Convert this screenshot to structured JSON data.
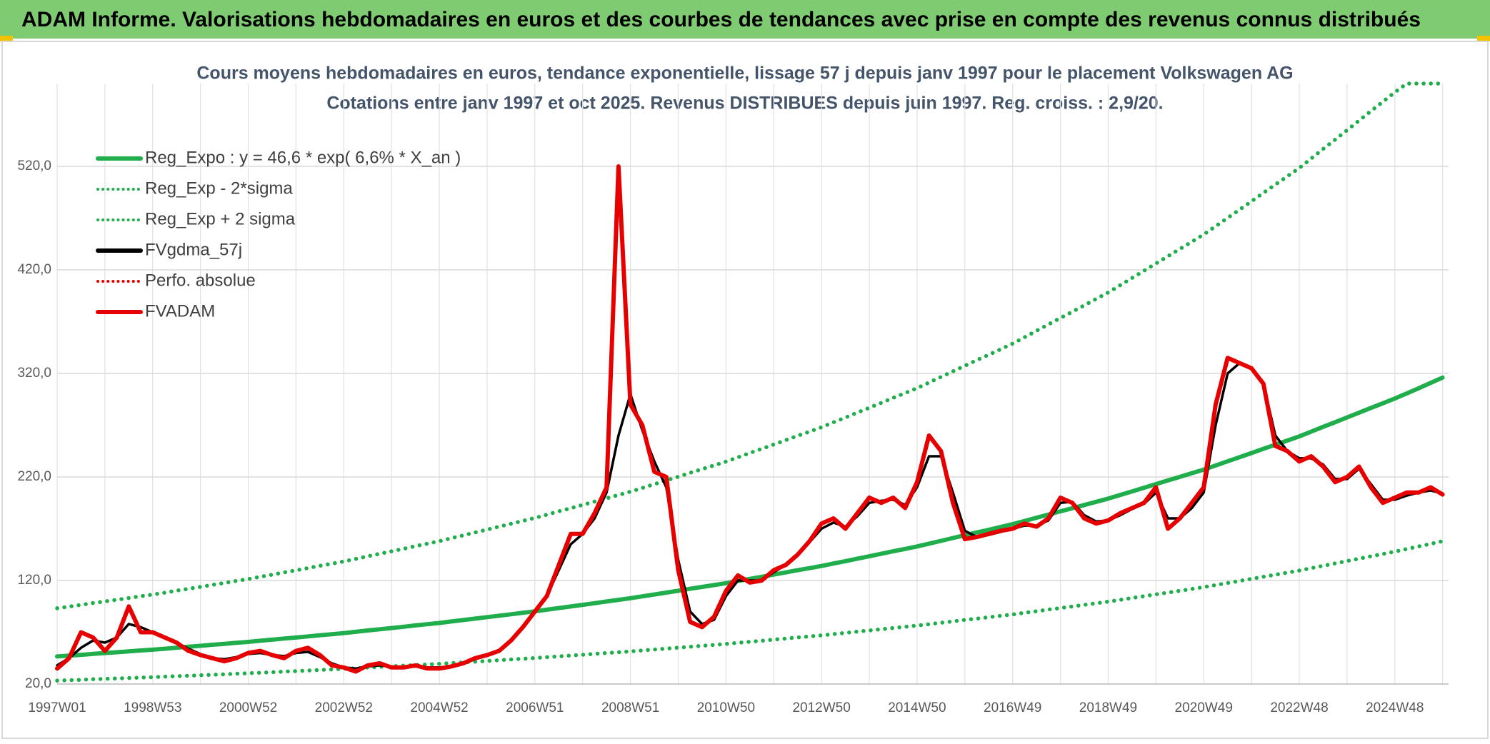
{
  "chart_data": {
    "type": "line",
    "title": "ADAM Informe. Valorisations hebdomadaires en euros et des courbes de tendances avec prise en compte des revenus connus distribués",
    "subtitle": [
      "Cours moyens hebdomadaires en euros, tendance exponentielle, lissage 57 j depuis janv 1997 pour le placement Volkswagen AG",
      "Cotations entre janv 1997 et oct 2025. Revenus DISTRIBUES depuis juin 1997. Reg. croiss. : 2,9/20."
    ],
    "categories": [
      "1997W01",
      null,
      null,
      null,
      null,
      null,
      null,
      null,
      "1998W53",
      null,
      null,
      null,
      null,
      null,
      null,
      null,
      "2000W52",
      null,
      null,
      null,
      null,
      null,
      null,
      null,
      "2002W52",
      null,
      null,
      null,
      null,
      null,
      null,
      null,
      "2004W52",
      null,
      null,
      null,
      null,
      null,
      null,
      null,
      "2006W51",
      null,
      null,
      null,
      null,
      null,
      null,
      null,
      "2008W51",
      null,
      null,
      null,
      null,
      null,
      null,
      null,
      "2010W50",
      null,
      null,
      null,
      null,
      null,
      null,
      null,
      "2012W50",
      null,
      null,
      null,
      null,
      null,
      null,
      null,
      "2014W50",
      null,
      null,
      null,
      null,
      null,
      null,
      null,
      "2016W49",
      null,
      null,
      null,
      null,
      null,
      null,
      null,
      "2018W49",
      null,
      null,
      null,
      null,
      null,
      null,
      null,
      "2020W49",
      null,
      null,
      null,
      null,
      null,
      null,
      null,
      "2022W48",
      null,
      null,
      null,
      null,
      null,
      null,
      null,
      "2024W48",
      null,
      null,
      null,
      null
    ],
    "ylim": [
      20,
      600
    ],
    "yticks": [
      {
        "value": 20,
        "label": "20,0"
      },
      {
        "value": 120,
        "label": "120,0"
      },
      {
        "value": 220,
        "label": "220,0"
      },
      {
        "value": 320,
        "label": "320,0"
      },
      {
        "value": 420,
        "label": "420,0"
      },
      {
        "value": 520,
        "label": "520,0"
      }
    ],
    "grid": true,
    "legend": "upper left",
    "series": [
      {
        "name": "Reg_Expo : y = 46,6 * exp( 6,6% *  X_an )",
        "color": "#1fae4b",
        "line_style": "solid",
        "values": [
          46.6,
          47.4,
          48.2,
          49.1,
          49.9,
          50.7,
          51.5,
          52.4,
          53.2,
          54.1,
          55.1,
          56.0,
          56.9,
          57.9,
          58.8,
          59.8,
          60.7,
          61.8,
          62.8,
          63.9,
          64.9,
          66.0,
          67.1,
          68.1,
          69.2,
          70.4,
          71.7,
          72.9,
          74.1,
          75.3,
          76.6,
          77.8,
          79.0,
          80.4,
          81.8,
          83.2,
          84.6,
          86.0,
          87.4,
          88.8,
          90.2,
          91.8,
          93.4,
          94.9,
          96.5,
          98.1,
          99.7,
          101.3,
          102.9,
          104.7,
          106.5,
          108.3,
          110.1,
          112.0,
          113.8,
          115.6,
          117.4,
          119.5,
          121.6,
          123.6,
          125.7,
          127.8,
          129.9,
          131.9,
          134.0,
          136.4,
          138.7,
          141.1,
          143.4,
          145.8,
          148.2,
          150.5,
          152.9,
          155.6,
          158.3,
          161.0,
          163.7,
          166.4,
          169.0,
          171.7,
          174.4,
          177.5,
          180.6,
          183.7,
          186.8,
          189.8,
          192.9,
          196.0,
          199.1,
          202.6,
          206.1,
          209.6,
          213.1,
          216.6,
          220.1,
          223.6,
          227.1,
          231.1,
          235.1,
          239.1,
          243.1,
          247.2,
          251.2,
          255.2,
          259.2,
          263.8,
          268.4,
          272.9,
          277.5,
          282.1,
          286.7,
          291.2,
          295.8,
          300.7,
          305.7,
          310.8,
          316.0
        ]
      },
      {
        "name": "Reg_Exp - 2*sigma",
        "color": "#1fae4b",
        "line_style": "dotted",
        "values": [
          23.3,
          23.7,
          24.1,
          24.6,
          25,
          25.4,
          25.8,
          26.2,
          26.6,
          27.1,
          27.6,
          28,
          28.5,
          29,
          29.4,
          29.9,
          30.4,
          30.9,
          31.4,
          32,
          32.5,
          33,
          33.6,
          34.1,
          34.6,
          35.2,
          35.9,
          36.5,
          37.1,
          37.7,
          38.3,
          38.9,
          39.5,
          40.2,
          40.9,
          41.6,
          42.3,
          43,
          43.7,
          44.4,
          45.1,
          45.9,
          46.7,
          47.5,
          48.3,
          49.1,
          49.9,
          50.7,
          51.5,
          52.4,
          53.3,
          54.2,
          55.1,
          56,
          56.9,
          57.8,
          58.7,
          59.8,
          60.8,
          61.8,
          62.9,
          63.9,
          65,
          66,
          67,
          68.2,
          69.4,
          70.6,
          71.7,
          72.9,
          74.1,
          75.3,
          76.5,
          77.8,
          79.2,
          80.5,
          81.9,
          83.2,
          84.5,
          85.9,
          87.2,
          88.8,
          90.3,
          91.9,
          93.4,
          94.9,
          96.5,
          98,
          99.6,
          101.3,
          103.1,
          104.8,
          106.6,
          108.3,
          110.1,
          111.8,
          113.6,
          115.6,
          117.6,
          119.6,
          121.6,
          123.6,
          125.6,
          127.6,
          129.6,
          131.9,
          134.2,
          136.5,
          138.8,
          141.1,
          143.4,
          145.6,
          147.9,
          150.4,
          152.9,
          155.4,
          158
        ]
      },
      {
        "name": "Reg_Exp + 2 sigma",
        "color": "#1fae4b",
        "line_style": "dotted",
        "values": [
          93.2,
          94.8,
          96.4,
          98.2,
          99.8,
          101.4,
          103,
          104.8,
          106.4,
          108.2,
          110.2,
          112,
          113.8,
          115.8,
          117.6,
          119.6,
          121.4,
          123.6,
          125.6,
          127.8,
          129.8,
          132,
          134.2,
          136.2,
          138.4,
          140.8,
          143.4,
          145.8,
          148.2,
          150.6,
          153.2,
          155.6,
          158,
          160.8,
          163.6,
          166.4,
          169.2,
          172,
          174.8,
          177.6,
          180.4,
          183.6,
          186.8,
          189.8,
          193,
          196.2,
          199.4,
          202.6,
          205.8,
          209.4,
          213,
          216.6,
          220.2,
          224,
          227.6,
          231.2,
          234.8,
          239,
          243.2,
          247.2,
          251.4,
          255.6,
          259.8,
          263.8,
          268,
          272.8,
          277.4,
          282.2,
          286.8,
          291.6,
          296.4,
          301,
          305.8,
          311.2,
          316.6,
          322,
          327.4,
          332.8,
          338,
          343.4,
          348.8,
          355,
          361.2,
          367.4,
          373.6,
          379.6,
          385.8,
          392,
          398.2,
          405.2,
          412.2,
          419.2,
          426.2,
          433.2,
          440.2,
          447.2,
          454.2,
          462.2,
          470.2,
          478.2,
          486.2,
          494.4,
          502.4,
          510.4,
          518.4,
          527.6,
          536.8,
          545.8,
          555,
          564.2,
          573.4,
          582.4,
          591.6,
          600,
          600,
          600,
          600
        ]
      },
      {
        "name": "FVgdma_57j",
        "color": "#000000",
        "line_style": "solid",
        "values": [
          38,
          45,
          55,
          62,
          60,
          65,
          78,
          75,
          70,
          65,
          60,
          54,
          49,
          45,
          44,
          46,
          49,
          50,
          48,
          47,
          50,
          51,
          46,
          40,
          36,
          35,
          37,
          38,
          37,
          36,
          37,
          36,
          36,
          37,
          40,
          44,
          48,
          53,
          62,
          75,
          90,
          105,
          130,
          155,
          165,
          180,
          205,
          260,
          300,
          265,
          235,
          210,
          140,
          90,
          78,
          82,
          105,
          120,
          120,
          120,
          128,
          135,
          145,
          157,
          170,
          176,
          172,
          182,
          195,
          197,
          198,
          193,
          210,
          240,
          240,
          205,
          168,
          162,
          164,
          167,
          170,
          173,
          173,
          178,
          195,
          196,
          183,
          177,
          178,
          183,
          189,
          194,
          205,
          180,
          180,
          190,
          205,
          270,
          320,
          330,
          325,
          310,
          260,
          245,
          238,
          238,
          232,
          218,
          218,
          228,
          213,
          198,
          198,
          202,
          205,
          207,
          204
        ]
      },
      {
        "name": "Perfo. absolue",
        "color": "#e60000",
        "line_style": "dotted",
        "values": [
          null,
          null,
          null,
          null,
          null,
          null,
          null,
          null,
          null,
          null,
          null,
          null,
          null,
          null,
          null,
          null,
          null,
          null,
          null,
          null,
          null,
          null,
          null,
          null,
          null,
          null,
          null,
          null,
          null,
          null,
          null,
          null,
          null,
          null,
          null,
          null,
          null,
          null,
          null,
          null,
          null,
          null,
          null,
          null,
          null,
          null,
          null,
          null,
          null,
          null,
          null,
          null,
          null,
          null,
          null,
          null,
          null,
          null,
          null,
          null,
          null,
          null,
          null,
          null,
          null,
          null,
          null,
          null,
          null,
          null,
          null,
          null,
          null,
          null,
          null,
          null,
          null,
          null,
          null,
          null,
          null,
          null,
          null,
          null,
          null,
          null,
          null,
          null,
          null,
          null,
          null,
          null,
          null,
          null,
          null,
          null,
          null,
          null,
          null,
          null,
          null,
          null,
          null,
          null,
          null,
          null,
          null,
          null,
          null,
          null,
          null,
          null,
          null,
          null,
          null,
          null,
          null
        ]
      },
      {
        "name": "FVADAM",
        "color": "#e60000",
        "line_style": "solid",
        "values": [
          35,
          45,
          70,
          65,
          52,
          65,
          95,
          70,
          70,
          65,
          60,
          52,
          48,
          45,
          42,
          45,
          50,
          52,
          48,
          45,
          52,
          55,
          48,
          38,
          36,
          32,
          38,
          40,
          36,
          36,
          38,
          35,
          35,
          37,
          40,
          45,
          48,
          52,
          62,
          75,
          90,
          105,
          135,
          165,
          165,
          185,
          210,
          520,
          290,
          270,
          225,
          220,
          130,
          80,
          75,
          85,
          110,
          125,
          118,
          120,
          130,
          135,
          145,
          158,
          175,
          180,
          170,
          185,
          200,
          195,
          200,
          190,
          215,
          260,
          245,
          195,
          160,
          162,
          165,
          168,
          170,
          175,
          172,
          180,
          200,
          195,
          180,
          175,
          178,
          185,
          190,
          195,
          210,
          170,
          180,
          195,
          210,
          290,
          335,
          330,
          325,
          310,
          250,
          245,
          235,
          240,
          230,
          215,
          220,
          230,
          210,
          195,
          200,
          205,
          205,
          210,
          203
        ]
      }
    ]
  }
}
